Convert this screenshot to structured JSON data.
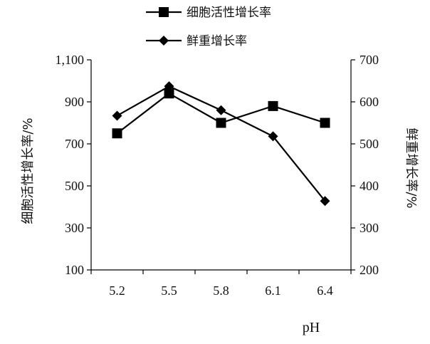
{
  "chart_data": {
    "type": "line",
    "xlabel": "pH",
    "categories": [
      "5.2",
      "5.5",
      "5.8",
      "6.1",
      "6.4"
    ],
    "y_left": {
      "label": "细胞活性增长率/%",
      "range": [
        100,
        1100
      ],
      "ticks": [
        100,
        300,
        500,
        700,
        900,
        1100
      ],
      "tick_labels": [
        "100",
        "300",
        "500",
        "700",
        "900",
        "1,100"
      ]
    },
    "y_right": {
      "label": "鲜重增长率/%",
      "range": [
        200,
        700
      ],
      "ticks": [
        200,
        300,
        400,
        500,
        600,
        700
      ],
      "tick_labels": [
        "200",
        "300",
        "400",
        "500",
        "600",
        "700"
      ]
    },
    "series": [
      {
        "name": "细胞活性增长率",
        "axis": "left",
        "marker": "square",
        "values": [
          750,
          940,
          800,
          880,
          800
        ]
      },
      {
        "name": "鲜重增长率",
        "axis": "right",
        "marker": "diamond",
        "values": [
          567,
          637,
          580,
          518,
          364
        ]
      }
    ],
    "legend_position": "top-center",
    "grid": false
  }
}
